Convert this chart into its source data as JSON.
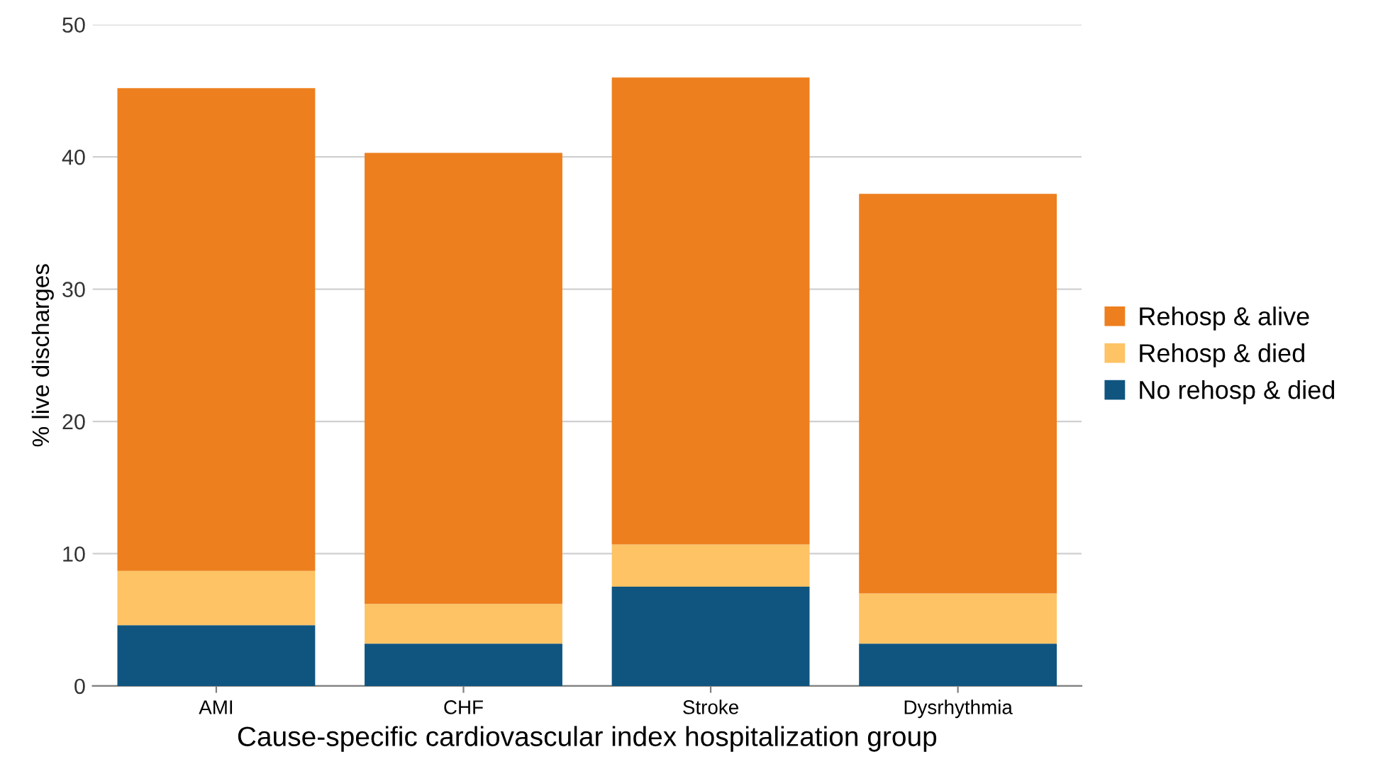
{
  "chart_data": {
    "type": "bar",
    "stacked": true,
    "xlabel": "Cause-specific cardiovascular index hospitalization group",
    "ylabel": "% live discharges",
    "categories": [
      "AMI",
      "CHF",
      "Stroke",
      "Dysrhythmia"
    ],
    "series": [
      {
        "name": "No rehosp & died",
        "color": "#0f5580",
        "values": [
          4.6,
          3.2,
          7.5,
          3.2
        ]
      },
      {
        "name": "Rehosp & died",
        "color": "#fdc365",
        "values": [
          4.1,
          3.0,
          3.2,
          3.8
        ]
      },
      {
        "name": "Rehosp & alive",
        "color": "#ed7f1e",
        "values": [
          36.5,
          34.1,
          35.3,
          30.2
        ]
      }
    ],
    "ylim": [
      0,
      50
    ],
    "yticks": [
      0,
      10,
      20,
      30,
      40,
      50
    ],
    "grid": "y",
    "legend": "right"
  }
}
